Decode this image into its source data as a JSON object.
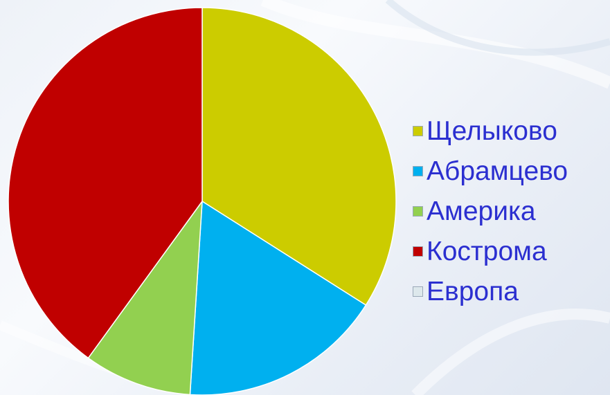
{
  "chart_data": {
    "type": "pie",
    "title": "",
    "start_angle_deg": 0,
    "direction": "clockwise",
    "slices": [
      {
        "label": "Щелыково",
        "value": 34,
        "color": "#cccc00"
      },
      {
        "label": "Абрамцево",
        "value": 17,
        "color": "#00b0ef"
      },
      {
        "label": "Америка",
        "value": 9,
        "color": "#92d050"
      },
      {
        "label": "Кострома",
        "value": 40,
        "color": "#c00000"
      },
      {
        "label": "Европа",
        "value": 0,
        "color": "#dde8ec"
      }
    ],
    "legend_placement": "right",
    "legend_text_color": "#2b2fd0"
  }
}
